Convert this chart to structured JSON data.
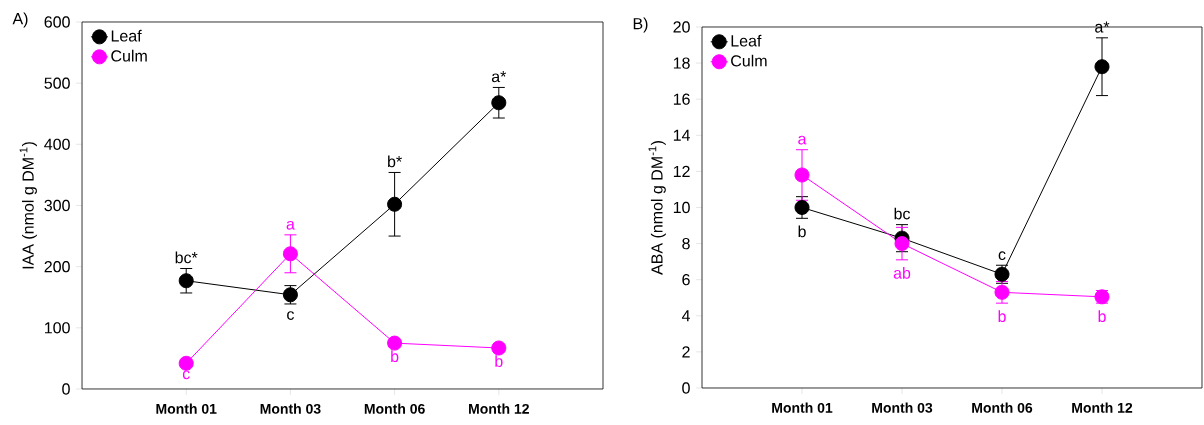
{
  "chart_data": [
    {
      "type": "line",
      "title": "A)",
      "ylabel": "IAA (nmol g DM$^{-1}$)",
      "categories": [
        "Month 01",
        "Month 03",
        "Month 06",
        "Month 12"
      ],
      "series": [
        {
          "name": "Leaf",
          "color": "#000000",
          "values": [
            177,
            154,
            302,
            468
          ],
          "errors": [
            20,
            15,
            52,
            25
          ],
          "value_labels": [
            "bc*",
            "c",
            "b*",
            "a*"
          ]
        },
        {
          "name": "Culm",
          "color": "#ff00ff",
          "values": [
            42,
            221,
            75,
            67
          ],
          "errors": [
            null,
            31,
            null,
            null
          ],
          "value_labels": [
            "c",
            "a",
            "b",
            "b"
          ]
        }
      ],
      "ylim": [
        0,
        600
      ],
      "yticks": [
        0,
        100,
        200,
        300,
        400,
        500,
        600
      ],
      "legend": "top left",
      "marker": "circle",
      "line_style": "solid"
    },
    {
      "type": "line",
      "title": "B)",
      "ylabel": "ABA (nmol g DM$^{-1}$)",
      "categories": [
        "Month 01",
        "Month 03",
        "Month 06",
        "Month 12"
      ],
      "series": [
        {
          "name": "Leaf",
          "color": "#000000",
          "values": [
            10.0,
            8.3,
            6.3,
            17.8
          ],
          "errors": [
            0.6,
            0.75,
            0.5,
            1.6
          ],
          "value_labels": [
            "b",
            "bc",
            "c",
            "a*"
          ]
        },
        {
          "name": "Culm",
          "color": "#ff00ff",
          "values": [
            11.8,
            8.0,
            5.3,
            5.05
          ],
          "errors": [
            1.4,
            0.9,
            0.6,
            0.35
          ],
          "value_labels": [
            "a",
            "ab",
            "b",
            "b"
          ]
        }
      ],
      "ylim": [
        0,
        20
      ],
      "yticks": [
        0,
        2,
        4,
        6,
        8,
        10,
        12,
        14,
        16,
        18,
        20
      ],
      "legend": "top left",
      "marker": "circle",
      "line_style": "solid"
    }
  ]
}
